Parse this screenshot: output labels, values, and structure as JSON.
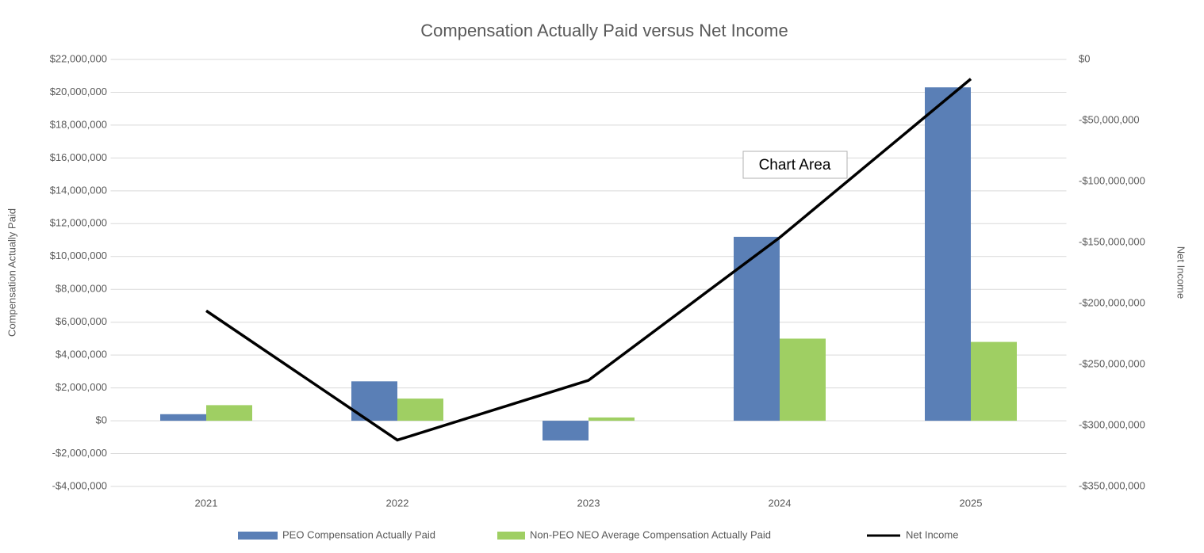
{
  "chart_data": {
    "type": "bar",
    "title": "Compensation Actually Paid versus Net Income",
    "y_label": "Compensation Actually Paid",
    "y2_label": "Net Income",
    "tooltip": "Chart Area",
    "categories": [
      "2021",
      "2022",
      "2023",
      "2024",
      "2025"
    ],
    "series": [
      {
        "name": "PEO Compensation Actually Paid",
        "color": "#5a7fb6",
        "type": "bar",
        "values": [
          400000,
          2400000,
          -1200000,
          11200000,
          20300000
        ]
      },
      {
        "name": "Non-PEO NEO Average Compensation Actually Paid",
        "color": "#9fcf63",
        "type": "bar",
        "values": [
          950000,
          1350000,
          200000,
          5000000,
          4800000
        ]
      },
      {
        "name": "Net Income",
        "color": "#000000",
        "type": "line",
        "axis": "y2",
        "values": [
          -206000000,
          -312000000,
          -263000000,
          -146000000,
          -16000000
        ]
      }
    ],
    "ylim": [
      -4000000,
      22000000
    ],
    "yticks": [
      {
        "value": -4000000,
        "label": "-$4,000,000"
      },
      {
        "value": -2000000,
        "label": "-$2,000,000"
      },
      {
        "value": 0,
        "label": "$0"
      },
      {
        "value": 2000000,
        "label": "$2,000,000"
      },
      {
        "value": 4000000,
        "label": "$4,000,000"
      },
      {
        "value": 6000000,
        "label": "$6,000,000"
      },
      {
        "value": 8000000,
        "label": "$8,000,000"
      },
      {
        "value": 10000000,
        "label": "$10,000,000"
      },
      {
        "value": 12000000,
        "label": "$12,000,000"
      },
      {
        "value": 14000000,
        "label": "$14,000,000"
      },
      {
        "value": 16000000,
        "label": "$16,000,000"
      },
      {
        "value": 18000000,
        "label": "$18,000,000"
      },
      {
        "value": 20000000,
        "label": "$20,000,000"
      },
      {
        "value": 22000000,
        "label": "$22,000,000"
      }
    ],
    "y2lim": [
      -350000000,
      0
    ],
    "y2ticks": [
      {
        "value": -350000000,
        "label": "-$350,000,000"
      },
      {
        "value": -300000000,
        "label": "-$300,000,000"
      },
      {
        "value": -250000000,
        "label": "-$250,000,000"
      },
      {
        "value": -200000000,
        "label": "-$200,000,000"
      },
      {
        "value": -150000000,
        "label": "-$150,000,000"
      },
      {
        "value": -100000000,
        "label": "-$100,000,000"
      },
      {
        "value": -50000000,
        "label": "-$50,000,000"
      },
      {
        "value": 0,
        "label": "$0"
      }
    ],
    "grid": true,
    "legend": "bottom"
  }
}
